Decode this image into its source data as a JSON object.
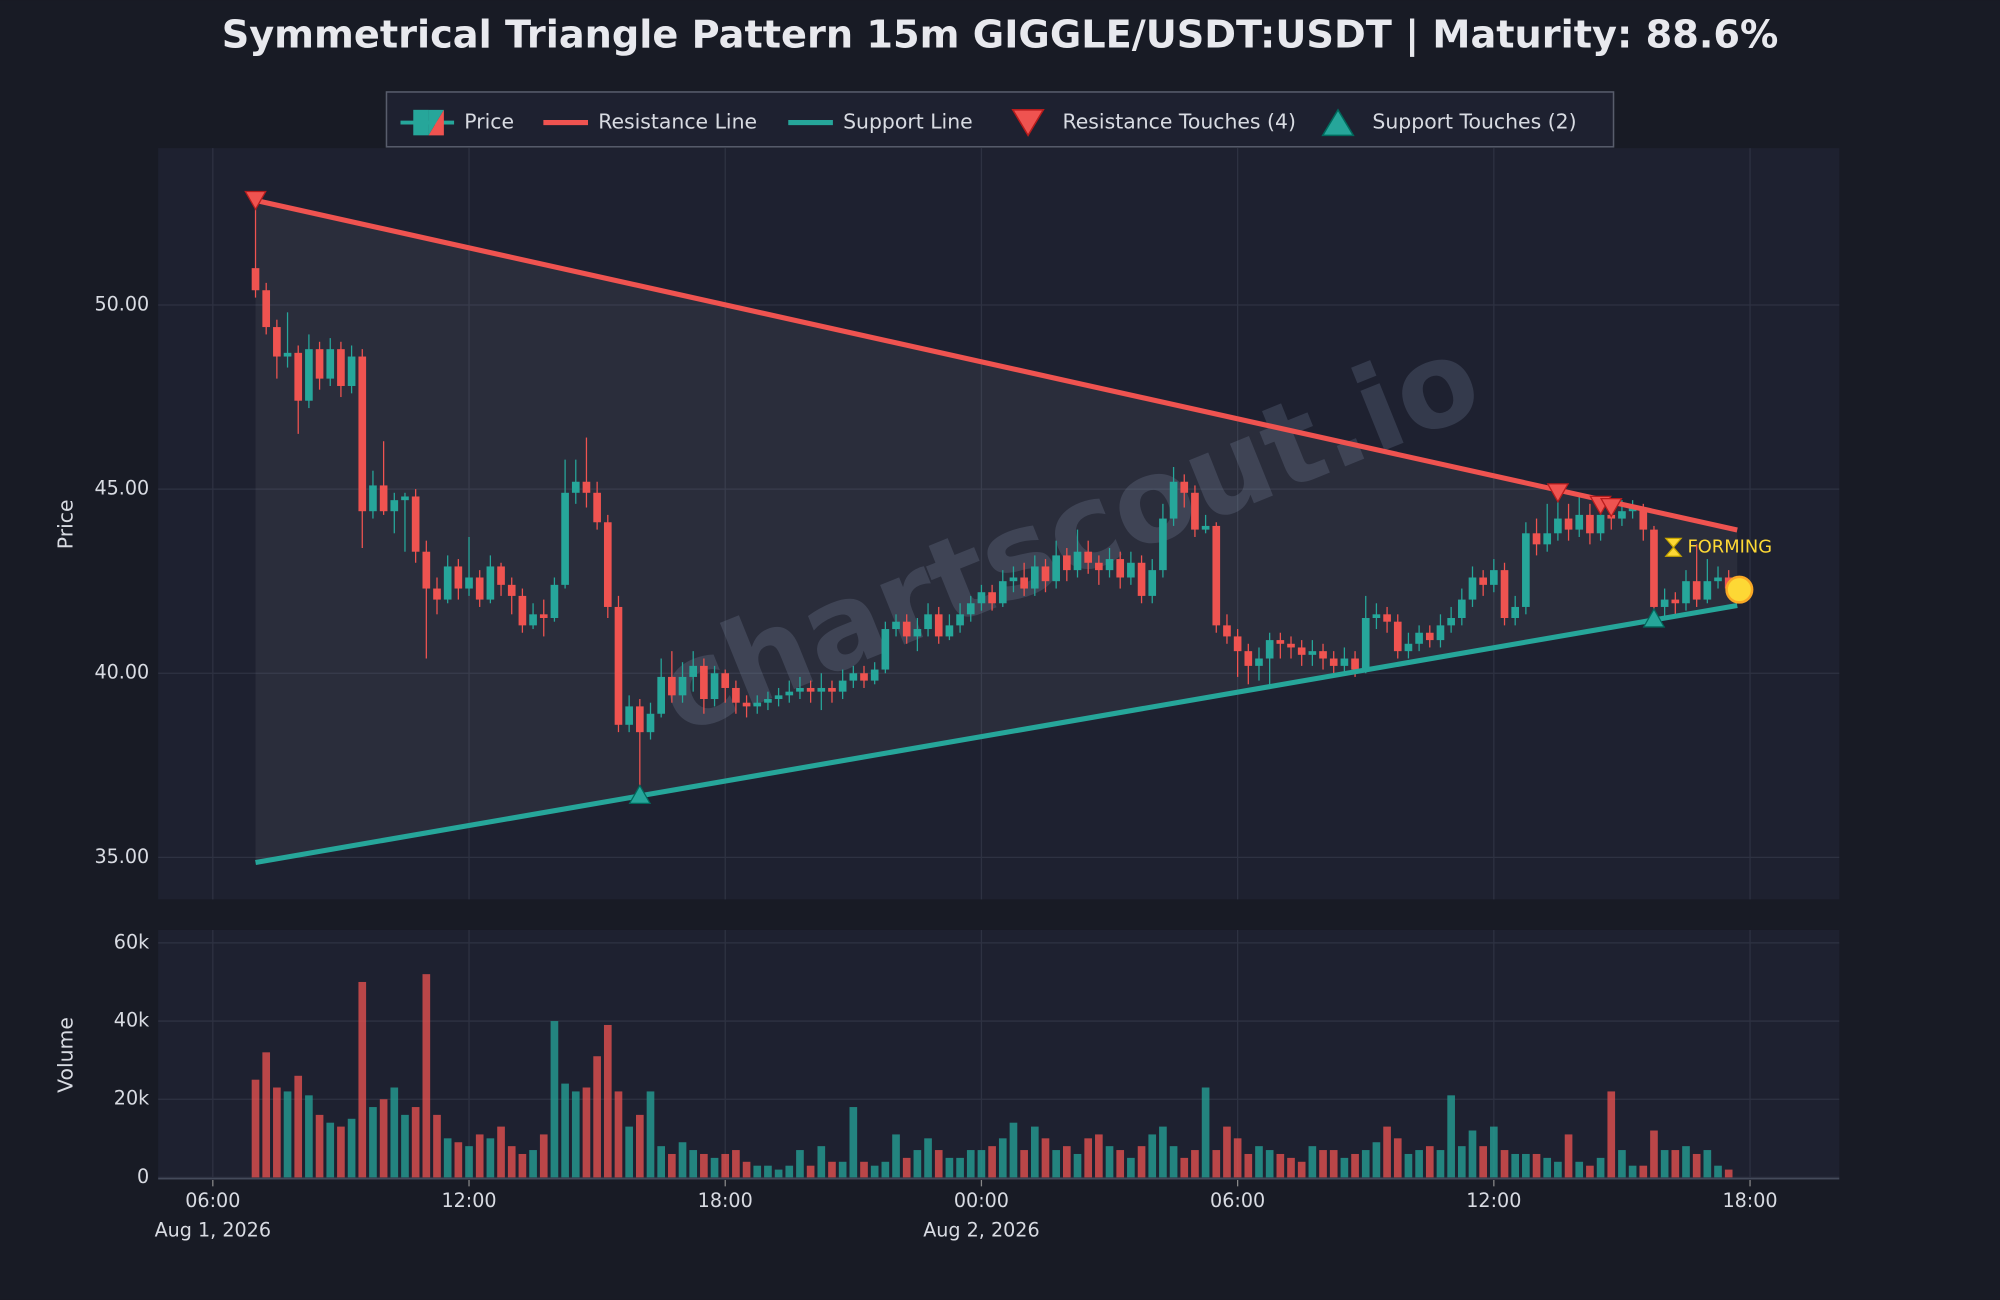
{
  "chart_data": {
    "type": "candlestick",
    "title": "Symmetrical Triangle Pattern 15m GIGGLE/USDT:USDT | Maturity: 88.6%",
    "watermark": "chartscout.io",
    "status_label": "FORMING",
    "ylabel": "Price",
    "xlim": [
      4.72,
      44.09
    ],
    "xticks": [
      {
        "value": 6,
        "label": "06:00"
      },
      {
        "value": 12,
        "label": "12:00"
      },
      {
        "value": 18,
        "label": "18:00"
      },
      {
        "value": 24,
        "label": "00:00"
      },
      {
        "value": 30,
        "label": "06:00"
      },
      {
        "value": 36,
        "label": "12:00"
      },
      {
        "value": 42,
        "label": "18:00"
      }
    ],
    "x_date_labels": [
      {
        "value": 6,
        "label": "Aug 1, 2026"
      },
      {
        "value": 24,
        "label": "Aug 2, 2026"
      }
    ],
    "ylim": [
      33.86,
      54.26
    ],
    "yticks": [
      {
        "value": 35,
        "label": "35.00"
      },
      {
        "value": 40,
        "label": "40.00"
      },
      {
        "value": 45,
        "label": "45.00"
      },
      {
        "value": 50,
        "label": "50.00"
      }
    ],
    "grid": true,
    "candles": {
      "name": "Price",
      "up_color": "#26a69a",
      "down_color": "#ef5350",
      "x": [
        7,
        7.25,
        7.5,
        7.75,
        8,
        8.25,
        8.5,
        8.75,
        9,
        9.25,
        9.5,
        9.75,
        10,
        10.25,
        10.5,
        10.75,
        11,
        11.25,
        11.5,
        11.75,
        12,
        12.25,
        12.5,
        12.75,
        13,
        13.25,
        13.5,
        13.75,
        14,
        14.25,
        14.5,
        14.75,
        15,
        15.25,
        15.5,
        15.75,
        16,
        16.25,
        16.5,
        16.75,
        17,
        17.25,
        17.5,
        17.75,
        18,
        18.25,
        18.5,
        18.75,
        19,
        19.25,
        19.5,
        19.75,
        20,
        20.25,
        20.5,
        20.75,
        21,
        21.25,
        21.5,
        21.75,
        22,
        22.25,
        22.5,
        22.75,
        23,
        23.25,
        23.5,
        23.75,
        24,
        24.25,
        24.5,
        24.75,
        25,
        25.25,
        25.5,
        25.75,
        26,
        26.25,
        26.5,
        26.75,
        27,
        27.25,
        27.5,
        27.75,
        28,
        28.25,
        28.5,
        28.75,
        29,
        29.25,
        29.5,
        29.75,
        30,
        30.25,
        30.5,
        30.75,
        31,
        31.25,
        31.5,
        31.75,
        32,
        32.25,
        32.5,
        32.75,
        33,
        33.25,
        33.5,
        33.75,
        34,
        34.25,
        34.5,
        34.75,
        35,
        35.25,
        35.5,
        35.75,
        36,
        36.25,
        36.5,
        36.75,
        37,
        37.25,
        37.5,
        37.75,
        38,
        38.25,
        38.5,
        38.75,
        39,
        39.25,
        39.5,
        39.75,
        40,
        40.25,
        40.5,
        40.75,
        41,
        41.25,
        41.5
      ],
      "open": [
        51.0,
        50.4,
        49.4,
        48.6,
        48.7,
        47.4,
        48.8,
        48.0,
        48.8,
        47.8,
        48.6,
        44.4,
        45.1,
        44.4,
        44.7,
        44.8,
        43.3,
        42.3,
        42.0,
        42.9,
        42.3,
        42.6,
        42.0,
        42.9,
        42.4,
        42.1,
        41.3,
        41.6,
        41.5,
        42.4,
        44.9,
        45.2,
        44.9,
        44.1,
        41.8,
        38.6,
        39.1,
        38.4,
        38.9,
        39.9,
        39.4,
        39.9,
        40.2,
        39.3,
        40.0,
        39.6,
        39.2,
        39.1,
        39.2,
        39.3,
        39.4,
        39.5,
        39.6,
        39.5,
        39.6,
        39.5,
        39.8,
        40.0,
        39.8,
        40.1,
        41.2,
        41.4,
        41.0,
        41.2,
        41.6,
        41.0,
        41.3,
        41.6,
        41.9,
        42.2,
        41.9,
        42.5,
        42.6,
        42.3,
        42.9,
        42.5,
        43.2,
        42.8,
        43.3,
        43.0,
        42.8,
        43.1,
        42.6,
        43.0,
        42.1,
        42.8,
        44.2,
        45.2,
        44.9,
        43.9,
        44.0,
        41.3,
        41.0,
        40.6,
        40.2,
        40.4,
        40.9,
        40.8,
        40.7,
        40.5,
        40.6,
        40.4,
        40.2,
        40.4,
        40.1,
        41.5,
        41.6,
        41.4,
        40.6,
        40.8,
        41.1,
        40.9,
        41.3,
        41.5,
        42.0,
        42.6,
        42.4,
        42.8,
        41.5,
        41.8,
        43.8,
        43.5,
        43.8,
        44.2,
        43.9,
        44.3,
        43.8,
        44.3,
        44.2,
        44.4,
        44.5,
        43.9,
        41.8,
        42.0,
        41.9,
        42.5,
        42.0,
        42.5,
        42.6
      ],
      "high": [
        52.8,
        50.6,
        49.6,
        49.8,
        48.9,
        49.2,
        49.0,
        49.1,
        49.0,
        48.9,
        48.8,
        45.5,
        46.3,
        44.9,
        44.9,
        45.0,
        43.6,
        42.6,
        43.2,
        43.1,
        43.7,
        42.8,
        43.2,
        43.0,
        42.6,
        42.3,
        41.9,
        42.0,
        42.6,
        45.8,
        45.8,
        46.4,
        45.2,
        44.3,
        42.1,
        39.4,
        39.3,
        39.2,
        40.4,
        40.6,
        40.3,
        40.6,
        40.4,
        40.2,
        40.1,
        39.8,
        39.4,
        39.4,
        39.5,
        39.6,
        39.8,
        39.9,
        39.8,
        40.0,
        39.8,
        40.1,
        40.2,
        40.2,
        40.3,
        41.4,
        41.6,
        41.6,
        41.5,
        41.9,
        41.8,
        41.6,
        41.9,
        42.1,
        42.4,
        42.4,
        42.8,
        42.9,
        43.0,
        43.2,
        43.1,
        43.6,
        43.4,
        43.9,
        43.6,
        43.2,
        43.4,
        43.3,
        43.3,
        43.2,
        43.1,
        44.6,
        45.6,
        45.4,
        45.1,
        44.3,
        44.1,
        41.6,
        41.2,
        40.8,
        40.7,
        41.1,
        41.1,
        41.0,
        40.9,
        40.9,
        40.8,
        40.6,
        40.7,
        40.6,
        42.1,
        41.9,
        41.8,
        41.6,
        41.1,
        41.3,
        41.3,
        41.6,
        41.8,
        42.3,
        42.9,
        42.8,
        43.1,
        43.0,
        42.1,
        44.1,
        44.2,
        44.6,
        44.9,
        44.6,
        44.8,
        44.6,
        44.5,
        44.6,
        44.7,
        44.7,
        44.6,
        44.0,
        42.3,
        42.2,
        42.8,
        43.5,
        43.1,
        42.9,
        42.8
      ],
      "low": [
        50.2,
        49.2,
        48.0,
        48.3,
        46.5,
        47.2,
        47.7,
        47.8,
        47.5,
        47.6,
        43.4,
        44.2,
        44.3,
        43.8,
        43.3,
        43.0,
        40.4,
        41.6,
        41.9,
        42.0,
        42.1,
        41.8,
        41.9,
        42.1,
        41.6,
        41.1,
        41.2,
        41.0,
        41.4,
        42.3,
        44.6,
        44.5,
        43.9,
        41.5,
        38.4,
        38.4,
        36.7,
        38.2,
        38.8,
        39.2,
        39.2,
        39.5,
        38.9,
        39.1,
        39.2,
        38.9,
        38.8,
        38.9,
        39.0,
        39.1,
        39.2,
        39.3,
        39.2,
        39.0,
        39.2,
        39.3,
        39.6,
        39.6,
        39.7,
        40.0,
        41.0,
        40.8,
        40.6,
        41.0,
        40.8,
        40.9,
        41.1,
        41.4,
        41.7,
        41.7,
        41.8,
        42.2,
        42.1,
        42.1,
        42.2,
        42.3,
        42.5,
        42.6,
        42.7,
        42.4,
        42.6,
        42.3,
        42.4,
        41.9,
        41.9,
        42.6,
        44.0,
        44.5,
        43.7,
        43.8,
        41.1,
        40.8,
        39.9,
        39.7,
        39.8,
        39.7,
        40.4,
        40.4,
        40.2,
        40.2,
        40.1,
        40.0,
        40.0,
        39.9,
        40.0,
        41.2,
        41.1,
        40.4,
        40.4,
        40.6,
        40.7,
        40.7,
        41.1,
        41.3,
        41.8,
        42.1,
        42.2,
        41.3,
        41.3,
        41.6,
        43.2,
        43.3,
        43.6,
        43.6,
        43.7,
        43.5,
        43.6,
        43.9,
        44.0,
        44.2,
        43.6,
        41.6,
        41.5,
        41.6,
        41.7,
        41.8,
        41.9,
        42.3,
        42.1
      ],
      "close": [
        50.4,
        49.4,
        48.6,
        48.7,
        47.4,
        48.8,
        48.0,
        48.8,
        47.8,
        48.6,
        44.4,
        45.1,
        44.4,
        44.7,
        44.8,
        43.3,
        42.3,
        42.0,
        42.9,
        42.3,
        42.6,
        42.0,
        42.9,
        42.4,
        42.1,
        41.3,
        41.6,
        41.5,
        42.4,
        44.9,
        45.2,
        44.9,
        44.1,
        41.8,
        38.6,
        39.1,
        38.4,
        38.9,
        39.9,
        39.4,
        39.9,
        40.2,
        39.3,
        40.0,
        39.6,
        39.2,
        39.1,
        39.2,
        39.3,
        39.4,
        39.5,
        39.6,
        39.5,
        39.6,
        39.5,
        39.8,
        40.0,
        39.8,
        40.1,
        41.2,
        41.4,
        41.0,
        41.2,
        41.6,
        41.0,
        41.3,
        41.6,
        41.9,
        42.2,
        41.9,
        42.5,
        42.6,
        42.3,
        42.9,
        42.5,
        43.2,
        42.8,
        43.3,
        43.0,
        42.8,
        43.1,
        42.6,
        43.0,
        42.1,
        42.8,
        44.2,
        45.2,
        44.9,
        43.9,
        44.0,
        41.3,
        41.0,
        40.6,
        40.2,
        40.4,
        40.9,
        40.8,
        40.7,
        40.5,
        40.6,
        40.4,
        40.2,
        40.4,
        40.1,
        41.5,
        41.6,
        41.4,
        40.6,
        40.8,
        41.1,
        40.9,
        41.3,
        41.5,
        42.0,
        42.6,
        42.4,
        42.8,
        41.5,
        41.8,
        43.8,
        43.5,
        43.8,
        44.2,
        43.9,
        44.3,
        43.8,
        44.3,
        44.2,
        44.4,
        44.5,
        43.9,
        41.8,
        42.0,
        41.9,
        42.5,
        42.0,
        42.5,
        42.6,
        42.3
      ]
    },
    "volume": {
      "ylabel": "Volume",
      "ylim": [
        0,
        63300
      ],
      "yticks": [
        0,
        {
          "value": 20000,
          "label": "20k"
        },
        {
          "value": 40000,
          "label": "40k"
        },
        {
          "value": 60000,
          "label": "60k"
        }
      ],
      "values": [
        25000,
        32000,
        23000,
        22000,
        26000,
        21000,
        16000,
        14000,
        13000,
        15000,
        50000,
        18000,
        20000,
        23000,
        16000,
        18000,
        52000,
        16000,
        10000,
        9000,
        8000,
        11000,
        10000,
        13000,
        8000,
        6000,
        7000,
        11000,
        40000,
        24000,
        22000,
        23000,
        31000,
        39000,
        22000,
        13000,
        16000,
        22000,
        8000,
        6000,
        9000,
        7000,
        6000,
        5000,
        6000,
        7000,
        4000,
        3000,
        3000,
        2000,
        3000,
        7000,
        3000,
        8000,
        4000,
        4000,
        18000,
        4000,
        3000,
        4000,
        11000,
        5000,
        7000,
        10000,
        7000,
        5000,
        5000,
        7000,
        7000,
        8000,
        10000,
        14000,
        7000,
        13000,
        10000,
        7000,
        8000,
        6000,
        10000,
        11000,
        8000,
        7000,
        5000,
        8000,
        11000,
        13000,
        8000,
        5000,
        7000,
        23000,
        7000,
        13000,
        10000,
        6000,
        8000,
        7000,
        6000,
        5000,
        4000,
        8000,
        7000,
        7000,
        5000,
        6000,
        7000,
        9000,
        13000,
        10000,
        6000,
        7000,
        8000,
        7000,
        21000,
        8000,
        12000,
        8000,
        13000,
        7000,
        6000,
        6000,
        6000,
        5000,
        4000,
        11000,
        4000,
        3000,
        5000,
        22000,
        7000,
        3000,
        3000,
        12000,
        7000,
        7000,
        8000,
        6000,
        7000,
        3000,
        2000
      ]
    },
    "resistance_line": {
      "name": "Resistance Line",
      "color": "#ef5350",
      "x": [
        7,
        41.7
      ],
      "y": [
        52.84,
        43.89
      ]
    },
    "support_line": {
      "name": "Support Line",
      "color": "#26a69a",
      "x": [
        7,
        41.7
      ],
      "y": [
        34.86,
        41.84
      ]
    },
    "resistance_touches": {
      "name": "Resistance Touches (4)",
      "color": "#ef5350",
      "x": [
        7,
        37.5,
        38.5,
        38.75
      ],
      "y": [
        52.84,
        44.9,
        44.56,
        44.5
      ]
    },
    "support_touches": {
      "name": "Support Touches (2)",
      "color": "#26a69a",
      "x": [
        16,
        39.75
      ],
      "y": [
        36.71,
        41.5
      ]
    },
    "current_price": {
      "color": "#fdd835",
      "x": 41.75,
      "y": 42.27
    }
  }
}
